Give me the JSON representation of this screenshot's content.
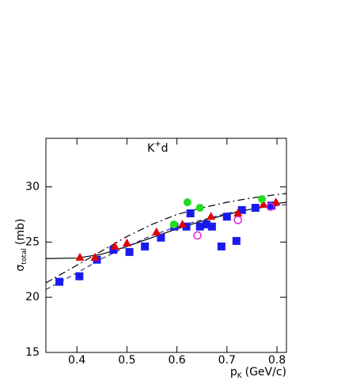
{
  "chart_data": {
    "type": "scatter",
    "annotation": {
      "base": "K",
      "sup": "+",
      "rest": "d"
    },
    "y_label": {
      "symbol": "σ",
      "subscript": "total",
      "unit": "(mb)"
    },
    "x_label": {
      "base": "p",
      "subscript": "K",
      "unit": "(GeV/c)"
    },
    "xlim": [
      0.338,
      0.819
    ],
    "ylim": [
      15,
      34.4
    ],
    "xticks": [
      0.4,
      0.5,
      0.6,
      0.7,
      0.8
    ],
    "yticks": [
      15,
      20,
      25,
      30
    ],
    "series": [
      {
        "marker": "none",
        "dash": "solid",
        "color": "#000000",
        "x": [
          0.338,
          0.4,
          0.45,
          0.5,
          0.55,
          0.6,
          0.65,
          0.7,
          0.75,
          0.8,
          0.819
        ],
        "values": [
          23.5,
          23.55,
          23.9,
          24.6,
          25.4,
          26.2,
          26.9,
          27.5,
          28.0,
          28.5,
          28.6
        ]
      },
      {
        "marker": "none",
        "dash": "dashdot",
        "color": "#000000",
        "x": [
          0.338,
          0.4,
          0.45,
          0.5,
          0.55,
          0.6,
          0.65,
          0.7,
          0.75,
          0.8,
          0.819
        ],
        "values": [
          21.3,
          22.9,
          24.2,
          25.5,
          26.6,
          27.5,
          28.1,
          28.6,
          29.0,
          29.3,
          29.4
        ]
      },
      {
        "marker": "none",
        "dash": "dash",
        "color": "#333388",
        "x": [
          0.338,
          0.4,
          0.45,
          0.5,
          0.55,
          0.6,
          0.65,
          0.7,
          0.75,
          0.8,
          0.819
        ],
        "values": [
          20.7,
          22.2,
          23.5,
          24.6,
          25.6,
          26.4,
          27.0,
          27.6,
          28.0,
          28.3,
          28.4
        ]
      },
      {
        "marker": "square",
        "color": "#1a1aee",
        "x": [
          0.365,
          0.405,
          0.44,
          0.473,
          0.505,
          0.536,
          0.568,
          0.595,
          0.619,
          0.627,
          0.646,
          0.659,
          0.67,
          0.689,
          0.7,
          0.719,
          0.73,
          0.757,
          0.789
        ],
        "values": [
          21.4,
          21.9,
          23.4,
          24.3,
          24.1,
          24.6,
          25.4,
          26.4,
          26.4,
          27.6,
          26.4,
          26.6,
          26.4,
          24.6,
          27.3,
          25.1,
          27.9,
          28.1,
          28.3
        ]
      },
      {
        "marker": "triangle",
        "color": "#e00000",
        "x": [
          0.406,
          0.436,
          0.476,
          0.5,
          0.559,
          0.611,
          0.668,
          0.722,
          0.773,
          0.798
        ],
        "values": [
          23.6,
          23.6,
          24.6,
          24.9,
          25.9,
          26.6,
          27.3,
          27.6,
          28.4,
          28.6
        ]
      },
      {
        "marker": "circle",
        "color": "#22dd22",
        "x": [
          0.594,
          0.621,
          0.646,
          0.77
        ],
        "values": [
          26.6,
          28.6,
          28.1,
          28.9
        ]
      },
      {
        "marker": "open-circle",
        "color": "#e020e0",
        "x": [
          0.641,
          0.722,
          0.787
        ],
        "values": [
          25.6,
          27.0,
          28.2
        ]
      }
    ]
  }
}
